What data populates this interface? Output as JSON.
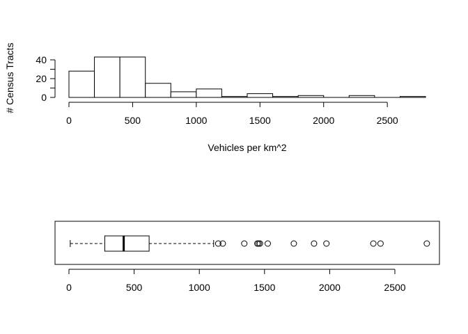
{
  "chart_data": [
    {
      "type": "bar",
      "subtype": "histogram",
      "bin_edges": [
        0,
        200,
        400,
        600,
        800,
        1000,
        1200,
        1400,
        1600,
        1800,
        2000,
        2200,
        2400,
        2600,
        2800
      ],
      "counts": [
        28,
        43,
        43,
        15,
        6,
        9,
        1,
        4,
        1,
        2,
        0,
        2,
        0,
        1
      ],
      "xlabel": "Vehicles per km^2",
      "ylabel": "# Census Tracts",
      "x_ticks": [
        0,
        500,
        1000,
        1500,
        2000,
        2500
      ],
      "y_ticks": [
        0,
        20,
        40
      ],
      "ylim": [
        0,
        43
      ],
      "xlim": [
        0,
        2800
      ]
    },
    {
      "type": "boxplot",
      "orientation": "horizontal",
      "whisker_low": 10,
      "q1": 275,
      "median": 420,
      "q3": 615,
      "whisker_high": 1110,
      "outliers": [
        1145,
        1180,
        1345,
        1445,
        1455,
        1465,
        1525,
        1725,
        1880,
        1975,
        2335,
        2390,
        2745
      ],
      "x_ticks": [
        0,
        500,
        1000,
        1500,
        2000,
        2500
      ],
      "xlim": [
        0,
        2800
      ]
    }
  ]
}
